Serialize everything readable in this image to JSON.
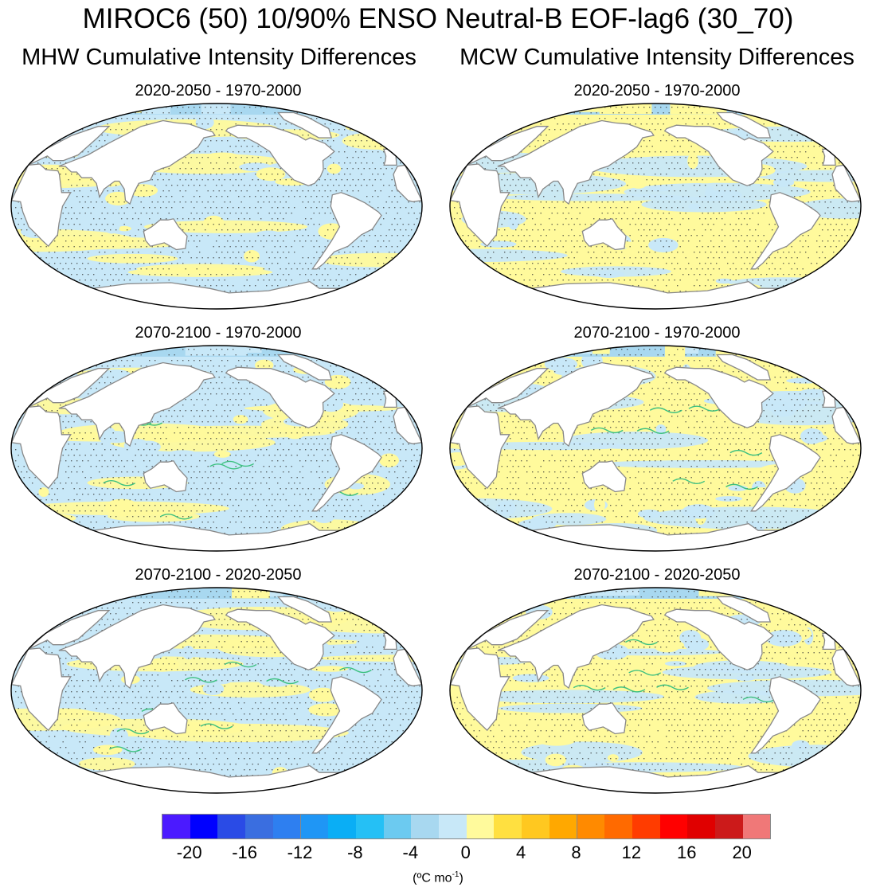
{
  "title": "MIROC6 (50) 10/90% ENSO Neutral-B EOF-lag6 (30_70)",
  "columns": {
    "left": "MHW Cumulative Intensity Differences",
    "right": "MCW Cumulative Intensity Differences"
  },
  "panels": [
    {
      "label": "2020-2050 - 1970-2000",
      "column": "MHW",
      "dominant": "neg"
    },
    {
      "label": "2020-2050 - 1970-2000",
      "column": "MCW",
      "dominant": "pos"
    },
    {
      "label": "2070-2100 - 1970-2000",
      "column": "MHW",
      "dominant": "neg"
    },
    {
      "label": "2070-2100 - 1970-2000",
      "column": "MCW",
      "dominant": "pos"
    },
    {
      "label": "2070-2100 - 2020-2050",
      "column": "MHW",
      "dominant": "neg"
    },
    {
      "label": "2070-2100 - 2020-2050",
      "column": "MCW",
      "dominant": "pos"
    }
  ],
  "colorbar": {
    "colors": [
      "#4b1aff",
      "#0000ff",
      "#2a4be6",
      "#3a6ee0",
      "#2e7ff0",
      "#1f96f5",
      "#0aaef5",
      "#25c0f5",
      "#6ccaf0",
      "#a8d8f0",
      "#c8e8f8",
      "#fffa9c",
      "#ffe040",
      "#ffc820",
      "#ffa800",
      "#ff8a00",
      "#ff6a00",
      "#ff3c00",
      "#ff0000",
      "#e00000",
      "#cc1a1a",
      "#f07878"
    ],
    "ticks": [
      "-20",
      "-16",
      "-12",
      "-8",
      "-4",
      "0",
      "4",
      "8",
      "12",
      "16",
      "20"
    ],
    "units": "(ºC mo",
    "units_sup": "-1",
    "units_end": ")"
  }
}
